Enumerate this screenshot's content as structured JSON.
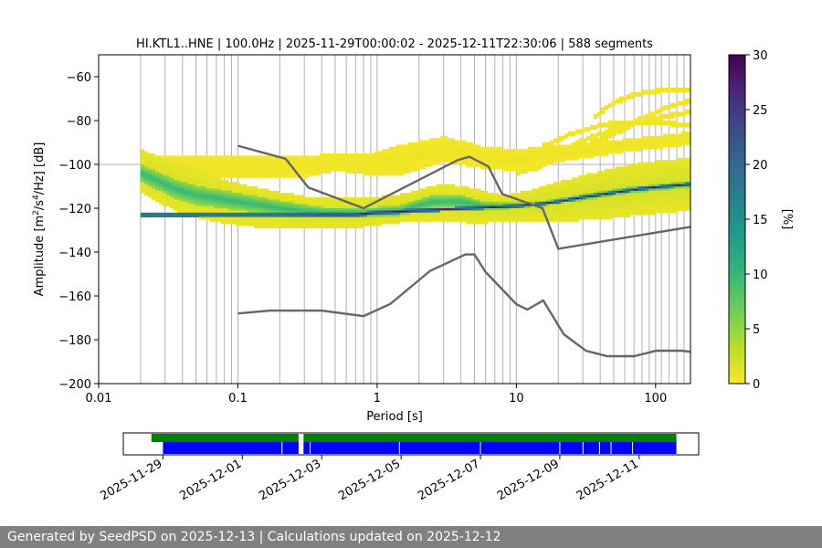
{
  "chart_data": {
    "type": "heatmap",
    "title": "HI.KTL1..HNE | 100.0Hz | 2025-11-29T00:00:02 - 2025-12-11T22:30:06 | 588 segments",
    "xlabel": "Period [s]",
    "ylabel_prefix": "Amplitude [m",
    "ylabel_suffix": "/Hz] [dB]",
    "x_scale": "log",
    "xlim": [
      0.01,
      178
    ],
    "ylim": [
      -200,
      -50
    ],
    "x_ticks": [
      {
        "value": 0.01,
        "label": "0.01"
      },
      {
        "value": 0.1,
        "label": "0.1"
      },
      {
        "value": 1,
        "label": "1"
      },
      {
        "value": 10,
        "label": "10"
      },
      {
        "value": 100,
        "label": "100"
      }
    ],
    "y_ticks": [
      {
        "value": -60,
        "label": "−60"
      },
      {
        "value": -80,
        "label": "−80"
      },
      {
        "value": -100,
        "label": "−100"
      },
      {
        "value": -120,
        "label": "−120"
      },
      {
        "value": -140,
        "label": "−140"
      },
      {
        "value": -160,
        "label": "−160"
      },
      {
        "value": -180,
        "label": "−180"
      },
      {
        "value": -200,
        "label": "−200"
      }
    ],
    "grid_periods": [
      0.02,
      0.03,
      0.04,
      0.05,
      0.06,
      0.07,
      0.08,
      0.09,
      0.1,
      0.2,
      0.3,
      0.4,
      0.5,
      0.6,
      0.7,
      0.8,
      0.9,
      1,
      2,
      3,
      4,
      5,
      6,
      7,
      8,
      9,
      10,
      20,
      30,
      40,
      50,
      60,
      70,
      80,
      90,
      100,
      110,
      125,
      142,
      160
    ],
    "grid_db": [
      -100
    ],
    "colorbar": {
      "label": "[%]",
      "min": 0,
      "max": 30,
      "ticks": [
        {
          "value": 0,
          "label": "0"
        },
        {
          "value": 5,
          "label": "5"
        },
        {
          "value": 10,
          "label": "10"
        },
        {
          "value": 15,
          "label": "15"
        },
        {
          "value": 20,
          "label": "20"
        },
        {
          "value": 25,
          "label": "25"
        },
        {
          "value": 30,
          "label": "30"
        }
      ],
      "colors": [
        "#fde725",
        "#b5de2b",
        "#6ece58",
        "#35b779",
        "#1f9e89",
        "#26828e",
        "#31688e",
        "#3e4989",
        "#482878",
        "#440154"
      ]
    },
    "density_bands": [
      {
        "period": [
          0.02,
          0.035,
          0.05,
          0.08,
          0.15,
          0.3,
          0.5,
          0.8,
          1.5,
          3,
          5,
          8,
          12,
          20,
          40,
          80,
          178
        ],
        "center": [
          -103,
          -110,
          -113,
          -117,
          -120,
          -122,
          -122,
          -122,
          -120,
          -117,
          -119,
          -120,
          -119,
          -117,
          -114,
          -111,
          -109
        ],
        "width": [
          20,
          22,
          22,
          20,
          18,
          15,
          14,
          13,
          13,
          17,
          16,
          12,
          14,
          18,
          22,
          24,
          24
        ],
        "level": 2
      },
      {
        "period": [
          0.02,
          0.035,
          0.05,
          0.1,
          0.2,
          0.4,
          0.8,
          1.5,
          2.5,
          4,
          6,
          9,
          15,
          30,
          60,
          178
        ],
        "center": [
          -104,
          -111,
          -114,
          -117,
          -120,
          -122,
          -122,
          -121,
          -117,
          -117,
          -119,
          -119,
          -118,
          -115,
          -112,
          -109
        ],
        "width": [
          8,
          9,
          9,
          8,
          7,
          5,
          4,
          5,
          6,
          6,
          4,
          3,
          2,
          3,
          3,
          3
        ],
        "level": 10
      },
      {
        "period": [
          0.2,
          0.4,
          0.7,
          1.0,
          10,
          15,
          20,
          30,
          50,
          80,
          120,
          178
        ],
        "center": [
          -123,
          -123,
          -123,
          -122,
          -119,
          -118,
          -117,
          -115,
          -113,
          -111,
          -110,
          -109
        ],
        "width": [
          1.5,
          2,
          2,
          2,
          1.5,
          1.5,
          1.5,
          1.5,
          1.5,
          1.5,
          1.5,
          1.5
        ],
        "level": 28
      },
      {
        "period": [
          0.3,
          0.5,
          0.9,
          1.5,
          3,
          6,
          10,
          20,
          50,
          178
        ],
        "center": [
          -101,
          -99,
          -100,
          -98,
          -93,
          -97,
          -98,
          -95,
          -92,
          -88
        ],
        "width": [
          10,
          8,
          10,
          14,
          12,
          10,
          10,
          8,
          6,
          6
        ],
        "level": 0.8
      }
    ],
    "sparse_lines": [
      {
        "period": [
          10,
          15,
          20,
          30,
          50,
          80,
          178
        ],
        "db": [
          -104,
          -101,
          -97,
          -92,
          -86,
          -80,
          -76
        ]
      },
      {
        "period": [
          20,
          30,
          50,
          80,
          120,
          178
        ],
        "db": [
          -95,
          -89,
          -84,
          -79,
          -74,
          -71
        ]
      },
      {
        "period": [
          35,
          50,
          70,
          100,
          130,
          178
        ],
        "db": [
          -79,
          -72,
          -68,
          -66.5,
          -66,
          -66
        ]
      },
      {
        "period": [
          15,
          25,
          40,
          60,
          100,
          178
        ],
        "db": [
          -92,
          -86,
          -82,
          -81,
          -81,
          -82
        ]
      }
    ],
    "nhnm": {
      "period": [
        0.1,
        0.22,
        0.32,
        0.8,
        3.8,
        4.6,
        6.3,
        7.9,
        15.4,
        20,
        178
      ],
      "db": [
        -91.5,
        -97.4,
        -110.5,
        -120,
        -98,
        -96.5,
        -101,
        -113.5,
        -120,
        -138.5,
        -128.5
      ]
    },
    "nlnm": {
      "period": [
        0.1,
        0.17,
        0.4,
        0.8,
        1.24,
        2.4,
        4.3,
        5,
        6,
        10,
        12,
        15.6,
        21.9,
        31.6,
        45,
        70,
        101,
        154,
        178
      ],
      "db": [
        -168,
        -166.7,
        -166.7,
        -169.2,
        -163.7,
        -148.6,
        -141.1,
        -141.1,
        -149,
        -163.8,
        -166.2,
        -162.1,
        -177.5,
        -185,
        -187.5,
        -187.5,
        -185,
        -185,
        -185.5
      ]
    },
    "timeline": {
      "date_min": "2025-11-28T00:00",
      "date_max": "2025-12-12T12:00",
      "date_ticks": [
        "2025-11-29",
        "2025-12-01",
        "2025-12-03",
        "2025-12-05",
        "2025-12-07",
        "2025-12-09",
        "2025-12-11"
      ],
      "green_color": "#008000",
      "blue_color": "#0000ff",
      "green_segments": [
        [
          "2025-11-28T17:00",
          "2025-12-02T10:00"
        ],
        [
          "2025-12-02T13:00",
          "2025-12-11T22:30"
        ]
      ],
      "blue_segments": [
        [
          "2025-11-29T00:00",
          "2025-12-02T10:00"
        ],
        [
          "2025-12-02T13:00",
          "2025-12-11T22:30"
        ]
      ],
      "gap_marks": [
        "2025-12-02T00:00",
        "2025-12-02T17:00",
        "2025-12-04T23:00",
        "2025-12-07T00:00",
        "2025-12-09T00:00",
        "2025-12-09T14:00",
        "2025-12-10T00:00",
        "2025-12-10T07:00",
        "2025-12-10T20:00"
      ]
    }
  },
  "footer": {
    "text": "Generated by SeedPSD on 2025-12-13 | Calculations updated on 2025-12-12"
  }
}
